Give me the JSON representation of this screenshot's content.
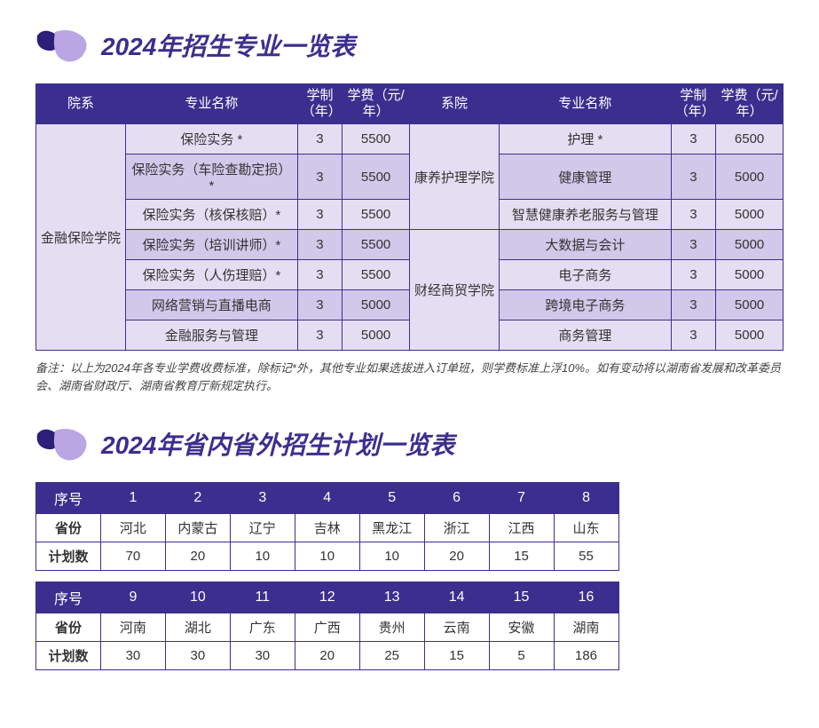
{
  "colors": {
    "primary": "#3a2f8f",
    "row_even": "#e5def3",
    "row_odd": "#d2c8ea",
    "logo_small": "#2b1f7a",
    "logo_big": "#b9a6e3"
  },
  "section1": {
    "title": "2024年招生专业一览表",
    "headers": {
      "dept": "院系",
      "major": "专业名称",
      "years": "学制（年）",
      "fee": "学费（元/年）",
      "dept2": "系院",
      "major2": "专业名称",
      "years2": "学制（年）",
      "fee2": "学费（元/年）"
    },
    "left_dept": "金融保险学院",
    "right_dept1": "康养护理学院",
    "right_dept2": "财经商贸学院",
    "left_rows": [
      {
        "major": "保险实务 *",
        "years": "3",
        "fee": "5500"
      },
      {
        "major": "保险实务（车险查勘定损）*",
        "years": "3",
        "fee": "5500"
      },
      {
        "major": "保险实务（核保核赔）*",
        "years": "3",
        "fee": "5500"
      },
      {
        "major": "保险实务（培训讲师）*",
        "years": "3",
        "fee": "5500"
      },
      {
        "major": "保险实务（人伤理赔）*",
        "years": "3",
        "fee": "5500"
      },
      {
        "major": "网络营销与直播电商",
        "years": "3",
        "fee": "5000"
      },
      {
        "major": "金融服务与管理",
        "years": "3",
        "fee": "5000"
      }
    ],
    "right_rows": [
      {
        "major": "护理 *",
        "years": "3",
        "fee": "6500"
      },
      {
        "major": "健康管理",
        "years": "3",
        "fee": "5000"
      },
      {
        "major": "智慧健康养老服务与管理",
        "years": "3",
        "fee": "5000"
      },
      {
        "major": "大数据与会计",
        "years": "3",
        "fee": "5000"
      },
      {
        "major": "电子商务",
        "years": "3",
        "fee": "5000"
      },
      {
        "major": "跨境电子商务",
        "years": "3",
        "fee": "5000"
      },
      {
        "major": "商务管理",
        "years": "3",
        "fee": "5000"
      }
    ],
    "note": "备注：以上为2024年各专业学费收费标准，除标记*外，其他专业如果选拔进入订单班，则学费标准上浮10%。如有变动将以湖南省发展和改革委员会、湖南省财政厅、湖南省教育厅新规定执行。"
  },
  "section2": {
    "title": "2024年省内省外招生计划一览表",
    "labels": {
      "seq": "序号",
      "province": "省份",
      "count": "计划数"
    },
    "table_a": {
      "seq": [
        "1",
        "2",
        "3",
        "4",
        "5",
        "6",
        "7",
        "8"
      ],
      "provinces": [
        "河北",
        "内蒙古",
        "辽宁",
        "吉林",
        "黑龙江",
        "浙江",
        "江西",
        "山东"
      ],
      "counts": [
        "70",
        "20",
        "10",
        "10",
        "10",
        "20",
        "15",
        "55"
      ]
    },
    "table_b": {
      "seq": [
        "9",
        "10",
        "11",
        "12",
        "13",
        "14",
        "15",
        "16"
      ],
      "provinces": [
        "河南",
        "湖北",
        "广东",
        "广西",
        "贵州",
        "云南",
        "安徽",
        "湖南"
      ],
      "counts": [
        "30",
        "30",
        "30",
        "20",
        "25",
        "15",
        "5",
        "186"
      ]
    }
  }
}
